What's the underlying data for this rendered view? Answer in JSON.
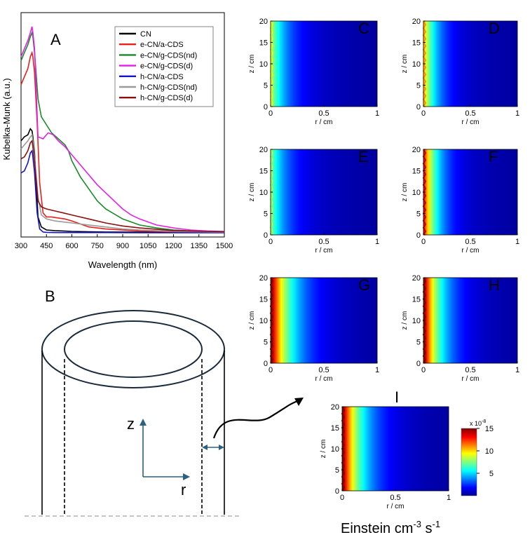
{
  "chart_data": [
    {
      "panel": "A",
      "type": "line",
      "xlabel": "Wavelength (nm)",
      "ylabel": "Kubelka-Munk (a.u.)",
      "xlim": [
        300,
        1500
      ],
      "ylim": [
        0,
        1
      ],
      "xticks": [
        "300",
        "450",
        "600",
        "750",
        "900",
        "1050",
        "1200",
        "1350",
        "1500"
      ],
      "legend_position": "top-right",
      "series": [
        {
          "name": "CN",
          "color": "#000000",
          "x": [
            300,
            320,
            340,
            355,
            365,
            370,
            380,
            400,
            420,
            450,
            500,
            550,
            600,
            700,
            800,
            1000,
            1500
          ],
          "y": [
            0.46,
            0.48,
            0.49,
            0.52,
            0.51,
            0.48,
            0.4,
            0.08,
            0.03,
            0.015,
            0.012,
            0.01,
            0.008,
            0.006,
            0.005,
            0.004,
            0.003
          ]
        },
        {
          "name": "e-CN/a-CDS",
          "color": "#e8201c",
          "x": [
            300,
            320,
            340,
            355,
            365,
            370,
            380,
            395,
            410,
            430,
            450,
            480,
            520,
            560,
            600,
            650,
            700,
            800,
            1000,
            1200,
            1500
          ],
          "y": [
            0.74,
            0.78,
            0.82,
            0.88,
            0.9,
            0.88,
            0.8,
            0.55,
            0.25,
            0.1,
            0.08,
            0.08,
            0.075,
            0.07,
            0.06,
            0.045,
            0.03,
            0.02,
            0.01,
            0.006,
            0.004
          ]
        },
        {
          "name": "e-CN/g-CDS(nd)",
          "color": "#1a8a2a",
          "x": [
            300,
            320,
            340,
            355,
            365,
            370,
            380,
            400,
            420,
            450,
            480,
            520,
            560,
            580,
            600,
            650,
            700,
            750,
            800,
            900,
            1000,
            1100,
            1200,
            1350,
            1500
          ],
          "y": [
            0.86,
            0.9,
            0.94,
            0.98,
            1.0,
            0.98,
            0.9,
            0.67,
            0.58,
            0.54,
            0.5,
            0.47,
            0.44,
            0.41,
            0.36,
            0.28,
            0.22,
            0.16,
            0.12,
            0.07,
            0.04,
            0.025,
            0.015,
            0.008,
            0.005
          ]
        },
        {
          "name": "e-CN/g-CDS(d)",
          "color": "#e61ee6",
          "x": [
            300,
            320,
            340,
            355,
            365,
            370,
            380,
            400,
            430,
            460,
            490,
            520,
            560,
            600,
            650,
            700,
            750,
            800,
            850,
            900,
            950,
            1000,
            1100,
            1200,
            1300,
            1400,
            1500
          ],
          "y": [
            0.88,
            0.92,
            0.96,
            1.0,
            1.03,
            1.0,
            0.92,
            0.48,
            0.47,
            0.5,
            0.49,
            0.46,
            0.43,
            0.39,
            0.34,
            0.29,
            0.24,
            0.2,
            0.16,
            0.12,
            0.09,
            0.07,
            0.04,
            0.025,
            0.015,
            0.01,
            0.008
          ]
        },
        {
          "name": "h-CN/a-CDS",
          "color": "#1414c8",
          "x": [
            300,
            320,
            340,
            355,
            365,
            370,
            380,
            395,
            410,
            430,
            450,
            500,
            600,
            800,
            1000,
            1500
          ],
          "y": [
            0.3,
            0.31,
            0.35,
            0.4,
            0.41,
            0.38,
            0.3,
            0.1,
            0.02,
            0.005,
            0.003,
            0.002,
            0.002,
            0.002,
            0.001,
            0.001
          ]
        },
        {
          "name": "h-CN/g-CDS(nd)",
          "color": "#9a9a9a",
          "x": [
            300,
            320,
            340,
            355,
            365,
            370,
            380,
            400,
            420,
            450,
            500,
            550,
            600,
            700,
            800,
            900,
            1000,
            1200,
            1500
          ],
          "y": [
            0.42,
            0.44,
            0.46,
            0.48,
            0.49,
            0.46,
            0.38,
            0.18,
            0.09,
            0.07,
            0.06,
            0.055,
            0.05,
            0.04,
            0.03,
            0.02,
            0.015,
            0.008,
            0.004
          ]
        },
        {
          "name": "h-CN/g-CDS(d)",
          "color": "#8b1010",
          "x": [
            300,
            320,
            340,
            355,
            365,
            370,
            380,
            400,
            420,
            450,
            500,
            550,
            600,
            700,
            800,
            900,
            1000,
            1200,
            1500
          ],
          "y": [
            0.37,
            0.38,
            0.41,
            0.45,
            0.46,
            0.43,
            0.36,
            0.16,
            0.13,
            0.12,
            0.11,
            0.1,
            0.09,
            0.07,
            0.05,
            0.035,
            0.025,
            0.012,
            0.006
          ]
        }
      ]
    },
    {
      "panel": "C..I",
      "type": "heatmap",
      "xlabel": "r / cm",
      "ylabel": "z / cm",
      "xlim": [
        0,
        1
      ],
      "ylim": [
        0,
        20
      ],
      "xticks": [
        "0",
        "0.5",
        "1"
      ],
      "yticks": [
        "0",
        "5",
        "10",
        "15",
        "20"
      ],
      "colorbar": {
        "label": "Einstein cm-3 s-1",
        "multiplier": "x 10-8",
        "ticks": [
          "5",
          "10",
          "15"
        ],
        "range": [
          0,
          15
        ]
      },
      "panels": [
        {
          "label": "C",
          "max": 8,
          "decay": 0.16
        },
        {
          "label": "D",
          "max": 10,
          "decay": 0.15
        },
        {
          "label": "E",
          "max": 7,
          "decay": 0.16
        },
        {
          "label": "F",
          "max": 13,
          "decay": 0.15
        },
        {
          "label": "G",
          "max": 15,
          "decay": 0.19
        },
        {
          "label": "H",
          "max": 15,
          "decay": 0.18
        },
        {
          "label": "I",
          "max": 15,
          "decay": 0.18
        }
      ]
    }
  ],
  "diagram_B": {
    "label": "B",
    "z_axis_label": "z",
    "r_axis_label": "r",
    "colors": {
      "arrow": "#2a6080",
      "base_line": "#b0b0b8"
    }
  },
  "labels": {
    "A": "A",
    "colorbar_exponent_prefix": "x 10",
    "colorbar_exponent": "-8",
    "units_prefix": "Einstein cm",
    "units_exp1": "-3",
    "units_mid": " s",
    "units_exp2": "-1"
  }
}
